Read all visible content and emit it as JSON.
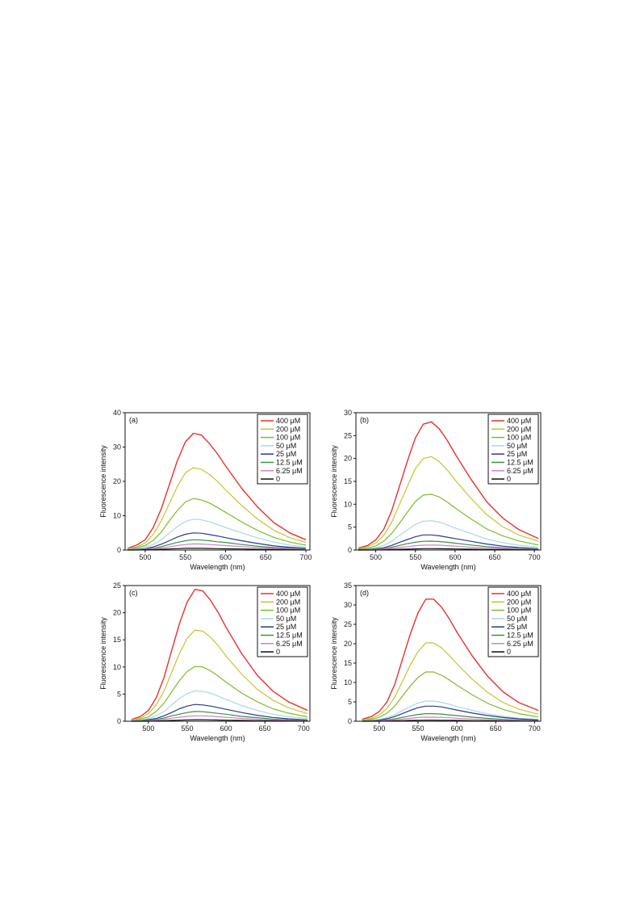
{
  "figure": {
    "series_labels": [
      "400 μM",
      "200 μM",
      "100 μM",
      "50 μM",
      "25 μM",
      "12.5 μM",
      "6.25 μM",
      "0"
    ],
    "series_colors": [
      "#e8302e",
      "#c5c531",
      "#7cbd2a",
      "#a8d8ea",
      "#2a3a8e",
      "#3f8f3f",
      "#d07fc8",
      "#111111"
    ]
  },
  "chart_data": [
    {
      "type": "line",
      "panel_label": "(a)",
      "xlabel": "Wavelength (nm)",
      "ylabel": "Fluorescence intensity",
      "xlim": [
        475,
        705
      ],
      "ylim": [
        0,
        40
      ],
      "xticks": [
        500,
        550,
        600,
        650,
        700
      ],
      "yticks": [
        0,
        10,
        20,
        30,
        40
      ],
      "legend_position": "top-right",
      "x": [
        478,
        490,
        500,
        510,
        520,
        530,
        540,
        550,
        560,
        570,
        580,
        590,
        600,
        620,
        640,
        660,
        680,
        700
      ],
      "series": [
        {
          "name": "400 μM",
          "values": [
            0.5,
            1.5,
            3,
            6.5,
            12,
            19,
            26,
            31.5,
            34,
            33.5,
            31,
            28,
            24.5,
            18,
            12.5,
            8,
            5,
            3
          ]
        },
        {
          "name": "200 μM",
          "values": [
            0.4,
            1,
            2,
            4.5,
            8.5,
            13.5,
            18.5,
            22.5,
            24,
            23.5,
            22,
            20,
            17.5,
            13,
            9,
            5.8,
            3.6,
            2.2
          ]
        },
        {
          "name": "100 μM",
          "values": [
            0.3,
            0.7,
            1.3,
            2.8,
            5.2,
            8.5,
            11.5,
            14,
            15,
            14.6,
            13.7,
            12.4,
            11,
            8.2,
            5.7,
            3.7,
            2.3,
            1.4
          ]
        },
        {
          "name": "50 μM",
          "values": [
            0.2,
            0.4,
            0.8,
            1.6,
            3,
            5,
            6.8,
            8.3,
            9,
            8.8,
            8.2,
            7.4,
            6.6,
            5,
            3.5,
            2.3,
            1.4,
            0.9
          ]
        },
        {
          "name": "25 μM",
          "values": [
            0.1,
            0.2,
            0.4,
            0.9,
            1.7,
            2.7,
            3.8,
            4.6,
            5,
            4.9,
            4.5,
            4.1,
            3.6,
            2.7,
            1.9,
            1.2,
            0.8,
            0.5
          ]
        },
        {
          "name": "12.5 μM",
          "values": [
            0.1,
            0.1,
            0.3,
            0.5,
            1,
            1.6,
            2.2,
            2.7,
            3,
            2.9,
            2.7,
            2.4,
            2.2,
            1.6,
            1.1,
            0.7,
            0.5,
            0.3
          ]
        },
        {
          "name": "6.25 μM",
          "values": [
            0,
            0.1,
            0.2,
            0.3,
            0.6,
            0.9,
            1.3,
            1.6,
            1.8,
            1.75,
            1.6,
            1.45,
            1.3,
            1,
            0.7,
            0.45,
            0.3,
            0.2
          ]
        },
        {
          "name": "0",
          "values": [
            0,
            0,
            0.1,
            0.1,
            0.2,
            0.3,
            0.4,
            0.5,
            0.5,
            0.5,
            0.45,
            0.4,
            0.35,
            0.3,
            0.2,
            0.15,
            0.1,
            0.05
          ]
        }
      ]
    },
    {
      "type": "line",
      "panel_label": "(b)",
      "xlabel": "Wavelength (nm)",
      "ylabel": "Fluorescence intensity",
      "xlim": [
        475,
        708
      ],
      "ylim": [
        0,
        30
      ],
      "xticks": [
        500,
        550,
        600,
        650,
        700
      ],
      "yticks": [
        0,
        5,
        10,
        15,
        20,
        25,
        30
      ],
      "legend_position": "top-right",
      "x": [
        478,
        490,
        500,
        510,
        520,
        530,
        540,
        550,
        560,
        570,
        580,
        590,
        600,
        620,
        640,
        660,
        680,
        705
      ],
      "series": [
        {
          "name": "400 μM",
          "values": [
            0.4,
            1,
            2.2,
            4.5,
            8.5,
            14,
            19.5,
            24.5,
            27.5,
            28,
            26.5,
            24,
            21,
            15.5,
            10.5,
            7,
            4.5,
            2.5
          ]
        },
        {
          "name": "200 μM",
          "values": [
            0.3,
            0.7,
            1.5,
            3.2,
            6,
            10,
            14,
            17.8,
            20,
            20.4,
            19.3,
            17.5,
            15.3,
            11.3,
            7.7,
            5.1,
            3.3,
            1.9
          ]
        },
        {
          "name": "100 μM",
          "values": [
            0.2,
            0.4,
            0.9,
            1.9,
            3.6,
            5.9,
            8.3,
            10.6,
            12,
            12.2,
            11.6,
            10.5,
            9.2,
            6.8,
            4.6,
            3.1,
            2,
            1.1
          ]
        },
        {
          "name": "50 μM",
          "values": [
            0.1,
            0.2,
            0.5,
            1,
            1.9,
            3.2,
            4.4,
            5.6,
            6.3,
            6.4,
            6.1,
            5.5,
            4.8,
            3.6,
            2.4,
            1.6,
            1.05,
            0.6
          ]
        },
        {
          "name": "25 μM",
          "values": [
            0.1,
            0.1,
            0.3,
            0.5,
            1,
            1.7,
            2.3,
            2.9,
            3.3,
            3.3,
            3.1,
            2.8,
            2.5,
            1.9,
            1.3,
            0.85,
            0.55,
            0.3
          ]
        },
        {
          "name": "12.5 μM",
          "values": [
            0,
            0.1,
            0.2,
            0.3,
            0.6,
            1,
            1.4,
            1.7,
            1.9,
            1.95,
            1.85,
            1.7,
            1.5,
            1.1,
            0.75,
            0.5,
            0.3,
            0.2
          ]
        },
        {
          "name": "6.25 μM",
          "values": [
            0,
            0,
            0.1,
            0.2,
            0.35,
            0.55,
            0.75,
            0.95,
            1.05,
            1.1,
            1.05,
            0.95,
            0.85,
            0.6,
            0.42,
            0.28,
            0.18,
            0.1
          ]
        },
        {
          "name": "0",
          "values": [
            0,
            0,
            0,
            0.05,
            0.1,
            0.15,
            0.2,
            0.25,
            0.3,
            0.3,
            0.28,
            0.26,
            0.23,
            0.17,
            0.12,
            0.08,
            0.05,
            0.03
          ]
        }
      ]
    },
    {
      "type": "line",
      "panel_label": "(c)",
      "xlabel": "Wavelength (nm)",
      "ylabel": "Fluorescence intensity",
      "xlim": [
        470,
        708
      ],
      "ylim": [
        0,
        25
      ],
      "xticks": [
        500,
        550,
        600,
        650,
        700
      ],
      "yticks": [
        0,
        5,
        10,
        15,
        20,
        25
      ],
      "legend_position": "top-right",
      "x": [
        478,
        490,
        500,
        510,
        520,
        530,
        540,
        550,
        560,
        570,
        580,
        590,
        600,
        620,
        640,
        660,
        680,
        705
      ],
      "series": [
        {
          "name": "400 μM",
          "values": [
            0.3,
            0.9,
            2,
            4.3,
            8,
            13,
            18,
            22,
            24.3,
            24,
            22.3,
            20,
            17.3,
            12.5,
            8.5,
            5.6,
            3.6,
            2
          ]
        },
        {
          "name": "200 μM",
          "values": [
            0.2,
            0.6,
            1.4,
            3,
            5.5,
            9,
            12.5,
            15.3,
            16.8,
            16.6,
            15.5,
            13.9,
            12,
            8.7,
            5.9,
            3.9,
            2.5,
            1.4
          ]
        },
        {
          "name": "100 μM",
          "values": [
            0.1,
            0.4,
            0.8,
            1.8,
            3.3,
            5.4,
            7.5,
            9.2,
            10.1,
            10,
            9.3,
            8.3,
            7.2,
            5.2,
            3.6,
            2.3,
            1.5,
            0.8
          ]
        },
        {
          "name": "50 μM",
          "values": [
            0.1,
            0.2,
            0.5,
            1,
            1.8,
            3,
            4.2,
            5.1,
            5.6,
            5.5,
            5.2,
            4.6,
            4,
            2.9,
            2,
            1.3,
            0.85,
            0.5
          ]
        },
        {
          "name": "25 μM",
          "values": [
            0.05,
            0.1,
            0.3,
            0.5,
            1,
            1.6,
            2.3,
            2.8,
            3.1,
            3,
            2.8,
            2.5,
            2.2,
            1.6,
            1.1,
            0.7,
            0.45,
            0.25
          ]
        },
        {
          "name": "12.5 μM",
          "values": [
            0,
            0.1,
            0.15,
            0.3,
            0.6,
            1,
            1.3,
            1.6,
            1.8,
            1.75,
            1.6,
            1.45,
            1.3,
            0.9,
            0.65,
            0.4,
            0.27,
            0.15
          ]
        },
        {
          "name": "6.25 μM",
          "values": [
            0,
            0,
            0.1,
            0.2,
            0.35,
            0.55,
            0.75,
            0.9,
            1,
            1,
            0.92,
            0.83,
            0.72,
            0.52,
            0.36,
            0.23,
            0.15,
            0.08
          ]
        },
        {
          "name": "0",
          "values": [
            0,
            0,
            0,
            0.05,
            0.1,
            0.15,
            0.2,
            0.25,
            0.28,
            0.28,
            0.26,
            0.23,
            0.2,
            0.15,
            0.1,
            0.07,
            0.04,
            0.02
          ]
        }
      ]
    },
    {
      "type": "line",
      "panel_label": "(d)",
      "xlabel": "Wavelength (nm)",
      "ylabel": "Fluorescence intensity",
      "xlim": [
        470,
        708
      ],
      "ylim": [
        0,
        35
      ],
      "xticks": [
        500,
        550,
        600,
        650,
        700
      ],
      "yticks": [
        0,
        5,
        10,
        15,
        20,
        25,
        30,
        35
      ],
      "legend_position": "top-right",
      "x": [
        478,
        490,
        500,
        510,
        520,
        530,
        540,
        550,
        560,
        570,
        580,
        590,
        600,
        620,
        640,
        660,
        680,
        705
      ],
      "series": [
        {
          "name": "400 μM",
          "values": [
            0.5,
            1.2,
            2.5,
            5,
            9.5,
            16,
            22.5,
            28,
            31.5,
            31.5,
            29.5,
            26.5,
            23,
            16.8,
            11.5,
            7.5,
            4.8,
            2.8
          ]
        },
        {
          "name": "200 μM",
          "values": [
            0.3,
            0.8,
            1.6,
            3.3,
            6.2,
            10.3,
            14.5,
            18,
            20.2,
            20.2,
            19,
            17,
            14.8,
            10.8,
            7.4,
            4.8,
            3.1,
            1.8
          ]
        },
        {
          "name": "100 μM",
          "values": [
            0.2,
            0.5,
            1,
            2.1,
            3.9,
            6.5,
            9.1,
            11.3,
            12.7,
            12.7,
            11.9,
            10.7,
            9.3,
            6.8,
            4.6,
            3,
            1.95,
            1.1
          ]
        },
        {
          "name": "50 μM",
          "values": [
            0.1,
            0.2,
            0.45,
            0.9,
            1.7,
            2.8,
            3.8,
            4.7,
            5.2,
            5.2,
            4.9,
            4.4,
            3.8,
            2.8,
            1.9,
            1.25,
            0.8,
            0.45
          ]
        },
        {
          "name": "25 μM",
          "values": [
            0.05,
            0.15,
            0.3,
            0.65,
            1.2,
            2,
            2.8,
            3.5,
            3.9,
            3.9,
            3.7,
            3.3,
            2.9,
            2.1,
            1.45,
            0.95,
            0.6,
            0.35
          ]
        },
        {
          "name": "12.5 μM",
          "values": [
            0,
            0.1,
            0.15,
            0.35,
            0.6,
            1,
            1.4,
            1.75,
            1.95,
            1.95,
            1.85,
            1.65,
            1.45,
            1.05,
            0.72,
            0.47,
            0.3,
            0.17
          ]
        },
        {
          "name": "6.25 μM",
          "values": [
            0,
            0,
            0.1,
            0.2,
            0.35,
            0.55,
            0.75,
            0.95,
            1.05,
            1.05,
            1,
            0.9,
            0.78,
            0.57,
            0.4,
            0.26,
            0.17,
            0.1
          ]
        },
        {
          "name": "0",
          "values": [
            0,
            0,
            0,
            0.05,
            0.1,
            0.15,
            0.2,
            0.25,
            0.28,
            0.28,
            0.26,
            0.24,
            0.2,
            0.15,
            0.1,
            0.07,
            0.04,
            0.02
          ]
        }
      ]
    }
  ]
}
